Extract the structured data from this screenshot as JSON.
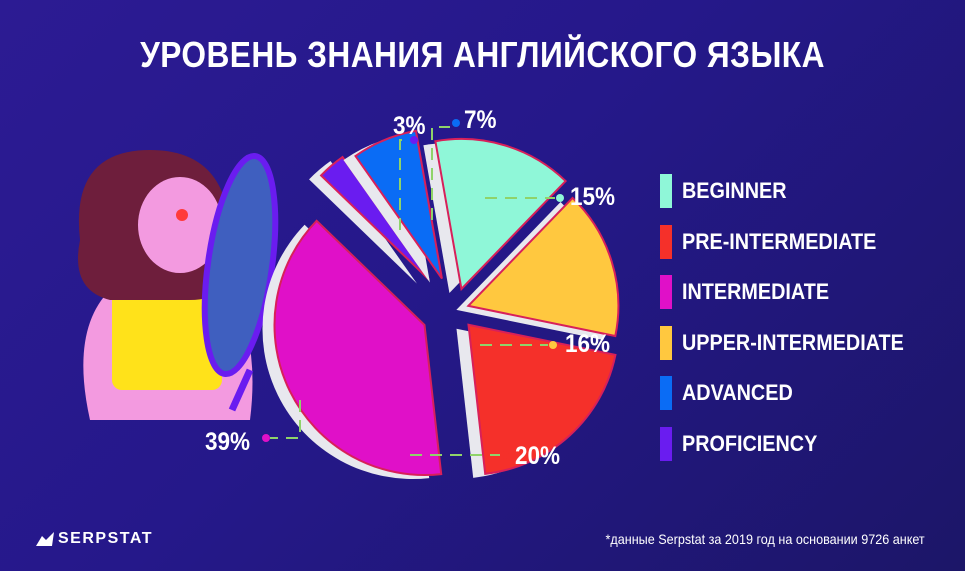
{
  "title": "УРОВЕНЬ ЗНАНИЯ АНГЛИЙСКОГО ЯЗЫКА",
  "chart_data": {
    "type": "pie",
    "title": "УРОВЕНЬ ЗНАНИЯ АНГЛИЙСКОГО ЯЗЫКА",
    "categories": [
      "BEGINNER",
      "UPPER-INTERMEDIATE",
      "PRE-INTERMEDIATE",
      "INTERMEDIATE",
      "PROFICIENCY",
      "ADVANCED"
    ],
    "values": [
      15,
      16,
      20,
      39,
      3,
      7
    ],
    "labels": [
      "15%",
      "16%",
      "20%",
      "39%",
      "3%",
      "7%"
    ],
    "colors": [
      "#8ff7d8",
      "#ffc83f",
      "#f5302a",
      "#e010c8",
      "#6a1cf0",
      "#0a6cf5"
    ],
    "legend_position": "right"
  },
  "legend": [
    {
      "label": "BEGINNER",
      "color": "#8ff7d8"
    },
    {
      "label": "PRE-INTERMEDIATE",
      "color": "#f5302a"
    },
    {
      "label": "INTERMEDIATE",
      "color": "#e010c8"
    },
    {
      "label": "UPPER-INTERMEDIATE",
      "color": "#ffc83f"
    },
    {
      "label": "ADVANCED",
      "color": "#0a6cf5"
    },
    {
      "label": "PROFICIENCY",
      "color": "#6a1cf0"
    }
  ],
  "logo": "SERPSTAT",
  "footnote": "*данные Serpstat за 2019 год на основании 9726 анкет"
}
